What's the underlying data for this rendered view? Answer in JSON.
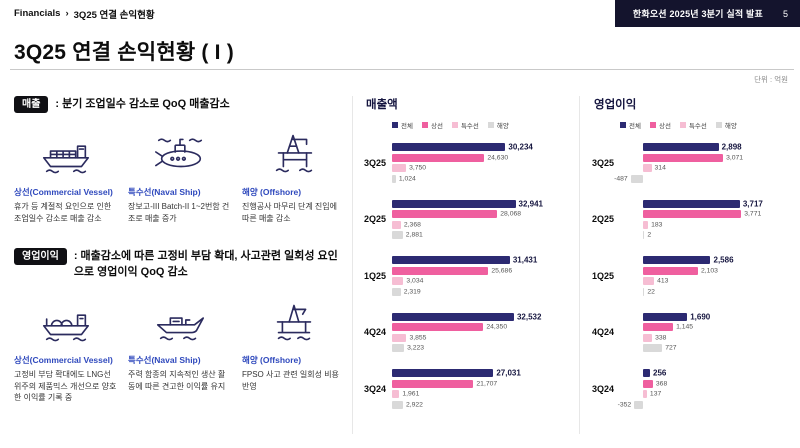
{
  "header": {
    "breadcrumb": {
      "section": "Financials",
      "separator": "›",
      "page": "3Q25 연결 손익현황"
    },
    "banner_title": "한화오션 2025년 3분기 실적 발표",
    "page_number": "5"
  },
  "title": "3Q25 연결 손익현황 ( I )",
  "unit_label": "단위 : 억원",
  "colors": {
    "navy": "#2c2a72",
    "pink": "#ef5f9f",
    "light_pink": "#f6bdd3",
    "gray": "#d9d9d9",
    "banner_bg": "#14142d",
    "label_blue": "#2f49bd"
  },
  "left": {
    "sales": {
      "badge": "매출",
      "headline": ": 분기 조업일수 감소로 QoQ 매출감소",
      "items": [
        {
          "icon": "container-ship-icon",
          "label": "상선(Commercial Vessel)",
          "desc": "휴가 등 계절적 요인으로 인한 조업일수 감소로 매출 감소"
        },
        {
          "icon": "submarine-icon",
          "label": "특수선(Naval Ship)",
          "desc": "장보고-III Batch-II 1~2번함 건조로 매출 증가"
        },
        {
          "icon": "offshore-platform-icon",
          "label": "해양 (Offshore)",
          "desc": "진행공사 마무리 단계 진입에 따른 매출 감소"
        }
      ]
    },
    "profit": {
      "badge": "영업이익",
      "headline": ": 매출감소에 따른 고정비 부담 확대, 사고관련 일회성 요인으로 영업이익 QoQ 감소",
      "items": [
        {
          "icon": "tanker-ship-icon",
          "label": "상선(Commercial Vessel)",
          "desc": "고정비 부담 확대에도 LNG선 위주의 제품믹스 개선으로 양호한 이익률 기록 중"
        },
        {
          "icon": "naval-boat-icon",
          "label": "특수선(Naval Ship)",
          "desc": "주력 함종의 지속적인 생산 활동에 따른 견고한 이익률 유지"
        },
        {
          "icon": "offshore-rig-icon",
          "label": "해양 (Offshore)",
          "desc": "FPSO 사고 관련 일회성 비용 반영"
        }
      ]
    }
  },
  "chart_data": [
    {
      "type": "bar",
      "orientation": "horizontal",
      "title": "매출액",
      "legend": [
        "전체",
        "상선",
        "특수선",
        "해양"
      ],
      "legend_colors": [
        "#2c2a72",
        "#ef5f9f",
        "#f6bdd3",
        "#d9d9d9"
      ],
      "categories": [
        "3Q25",
        "2Q25",
        "1Q25",
        "4Q24",
        "3Q24"
      ],
      "series": [
        {
          "name": "전체",
          "values": [
            30234,
            32941,
            31431,
            32532,
            27031
          ]
        },
        {
          "name": "상선",
          "values": [
            24630,
            28068,
            25686,
            24350,
            21707
          ]
        },
        {
          "name": "특수선",
          "values": [
            3750,
            2368,
            3034,
            3855,
            1961
          ]
        },
        {
          "name": "해양",
          "values": [
            1024,
            2881,
            2319,
            3223,
            2922
          ]
        }
      ],
      "xlim": [
        0,
        36000
      ],
      "grid": false,
      "legend_position": "top"
    },
    {
      "type": "bar",
      "orientation": "horizontal",
      "title": "영업이익",
      "legend": [
        "전체",
        "상선",
        "특수선",
        "해양"
      ],
      "legend_colors": [
        "#2c2a72",
        "#ef5f9f",
        "#f6bdd3",
        "#d9d9d9"
      ],
      "categories": [
        "3Q25",
        "2Q25",
        "1Q25",
        "4Q24",
        "3Q24"
      ],
      "series": [
        {
          "name": "전체",
          "values": [
            2898,
            3717,
            2586,
            1690,
            256
          ]
        },
        {
          "name": "상선",
          "values": [
            3071,
            3771,
            2103,
            1145,
            368
          ]
        },
        {
          "name": "특수선",
          "values": [
            314,
            183,
            413,
            338,
            137
          ]
        },
        {
          "name": "해양",
          "values": [
            -487,
            2,
            22,
            727,
            -352
          ]
        }
      ],
      "xlim": [
        -900,
        4300
      ],
      "grid": false,
      "legend_position": "top"
    }
  ]
}
